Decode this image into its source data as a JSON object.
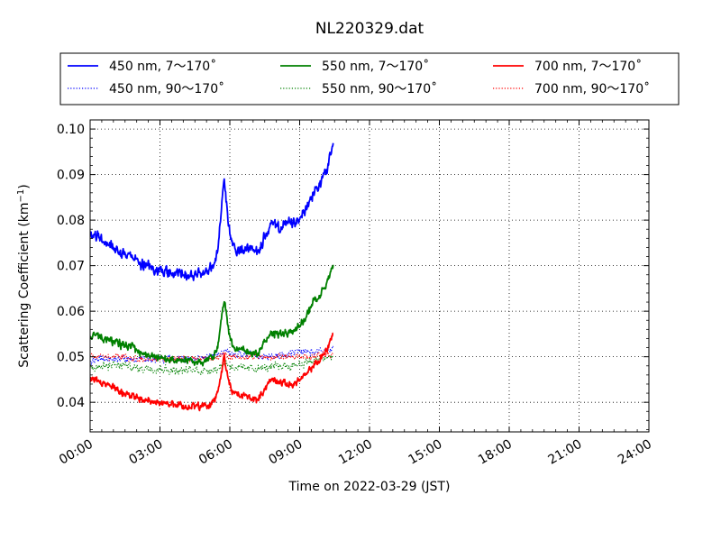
{
  "chart_data": {
    "type": "line",
    "title": "NL220329.dat",
    "xlabel": "Time on 2022-03-29 (JST)",
    "ylabel_main": "Scattering Coefficient (km",
    "ylabel_sup": "−1",
    "ylabel_end": ")",
    "xlim": [
      0,
      24
    ],
    "ylim": [
      0.0335,
      0.102
    ],
    "x_ticks": [
      0,
      3,
      6,
      9,
      12,
      15,
      18,
      21,
      24
    ],
    "x_tick_labels": [
      "00:00",
      "03:00",
      "06:00",
      "09:00",
      "12:00",
      "15:00",
      "18:00",
      "21:00",
      "24:00"
    ],
    "y_ticks": [
      0.04,
      0.05,
      0.06,
      0.07,
      0.08,
      0.09,
      0.1
    ],
    "y_tick_labels": [
      "0.04",
      "0.05",
      "0.06",
      "0.07",
      "0.08",
      "0.09",
      "0.10"
    ],
    "grid": true,
    "legend_position": "top",
    "x_unit": "hours since 00:00 JST",
    "series": [
      {
        "name": "450 nm, 7～170˚",
        "color": "#0000ff",
        "style": "solid",
        "noise": 0.0012,
        "x": [
          0,
          0.3,
          0.6,
          0.9,
          1.2,
          1.5,
          1.8,
          2.1,
          2.4,
          2.7,
          3.0,
          3.3,
          3.6,
          3.9,
          4.2,
          4.5,
          4.8,
          5.1,
          5.3,
          5.5,
          5.65,
          5.75,
          5.85,
          5.95,
          6.1,
          6.3,
          6.6,
          6.9,
          7.2,
          7.5,
          7.8,
          8.1,
          8.4,
          8.7,
          9.0,
          9.3,
          9.6,
          9.9,
          10.2,
          10.45
        ],
        "y": [
          0.0765,
          0.0765,
          0.0755,
          0.0745,
          0.0735,
          0.0725,
          0.072,
          0.0705,
          0.07,
          0.0695,
          0.069,
          0.0685,
          0.068,
          0.0685,
          0.0675,
          0.068,
          0.0685,
          0.069,
          0.07,
          0.074,
          0.083,
          0.0885,
          0.084,
          0.078,
          0.075,
          0.073,
          0.0735,
          0.074,
          0.073,
          0.0765,
          0.079,
          0.078,
          0.0795,
          0.079,
          0.0805,
          0.083,
          0.086,
          0.088,
          0.092,
          0.098
        ]
      },
      {
        "name": "450 nm, 90～170˚",
        "color": "#0000ff",
        "style": "dotted",
        "noise": 0.0008,
        "x": [
          0,
          0.5,
          1.0,
          1.5,
          2.0,
          2.5,
          3.0,
          3.5,
          4.0,
          4.5,
          5.0,
          5.5,
          5.8,
          6.0,
          6.5,
          7.0,
          7.5,
          8.0,
          8.5,
          9.0,
          9.5,
          10.0,
          10.45
        ],
        "y": [
          0.049,
          0.0495,
          0.0495,
          0.0495,
          0.0495,
          0.0495,
          0.0495,
          0.0495,
          0.0495,
          0.0495,
          0.05,
          0.0505,
          0.0515,
          0.0505,
          0.0505,
          0.0505,
          0.05,
          0.0505,
          0.0505,
          0.051,
          0.051,
          0.0515,
          0.052
        ]
      },
      {
        "name": "550 nm, 7～170˚",
        "color": "#008000",
        "style": "solid",
        "noise": 0.0009,
        "x": [
          0,
          0.3,
          0.6,
          0.9,
          1.2,
          1.5,
          1.8,
          2.1,
          2.4,
          2.7,
          3.0,
          3.3,
          3.6,
          3.9,
          4.2,
          4.5,
          4.8,
          5.1,
          5.3,
          5.5,
          5.65,
          5.75,
          5.85,
          5.95,
          6.1,
          6.3,
          6.6,
          6.9,
          7.2,
          7.5,
          7.8,
          8.1,
          8.4,
          8.7,
          9.0,
          9.3,
          9.6,
          9.9,
          10.2,
          10.45
        ],
        "y": [
          0.0545,
          0.0545,
          0.054,
          0.0535,
          0.053,
          0.0525,
          0.052,
          0.051,
          0.0505,
          0.05,
          0.05,
          0.0495,
          0.049,
          0.0495,
          0.049,
          0.049,
          0.049,
          0.0495,
          0.05,
          0.0525,
          0.059,
          0.063,
          0.06,
          0.0555,
          0.053,
          0.0515,
          0.0515,
          0.051,
          0.0505,
          0.053,
          0.0555,
          0.055,
          0.0555,
          0.0555,
          0.057,
          0.059,
          0.062,
          0.064,
          0.0665,
          0.07
        ]
      },
      {
        "name": "550 nm, 90～170˚",
        "color": "#008000",
        "style": "dotted",
        "noise": 0.0009,
        "x": [
          0,
          0.5,
          1.0,
          1.5,
          2.0,
          2.5,
          3.0,
          3.5,
          4.0,
          4.5,
          5.0,
          5.5,
          5.8,
          6.0,
          6.5,
          7.0,
          7.5,
          8.0,
          8.5,
          9.0,
          9.5,
          10.0,
          10.45
        ],
        "y": [
          0.0475,
          0.048,
          0.048,
          0.048,
          0.0475,
          0.0475,
          0.0475,
          0.047,
          0.047,
          0.047,
          0.047,
          0.0475,
          0.049,
          0.048,
          0.0475,
          0.0475,
          0.0475,
          0.048,
          0.048,
          0.0485,
          0.049,
          0.0495,
          0.05
        ]
      },
      {
        "name": "700 nm, 7～170˚",
        "color": "#ff0000",
        "style": "solid",
        "noise": 0.0008,
        "x": [
          0,
          0.3,
          0.6,
          0.9,
          1.2,
          1.5,
          1.8,
          2.1,
          2.4,
          2.7,
          3.0,
          3.3,
          3.6,
          3.9,
          4.2,
          4.5,
          4.8,
          5.1,
          5.3,
          5.5,
          5.65,
          5.75,
          5.85,
          5.95,
          6.1,
          6.3,
          6.6,
          6.9,
          7.2,
          7.5,
          7.8,
          8.1,
          8.4,
          8.7,
          9.0,
          9.3,
          9.6,
          9.9,
          10.2,
          10.45
        ],
        "y": [
          0.045,
          0.045,
          0.044,
          0.0435,
          0.0425,
          0.042,
          0.0415,
          0.041,
          0.0405,
          0.04,
          0.04,
          0.0395,
          0.0395,
          0.0395,
          0.039,
          0.039,
          0.039,
          0.0395,
          0.04,
          0.042,
          0.0465,
          0.05,
          0.0475,
          0.0445,
          0.0425,
          0.0415,
          0.0415,
          0.041,
          0.0405,
          0.043,
          0.045,
          0.0445,
          0.044,
          0.044,
          0.045,
          0.046,
          0.048,
          0.0495,
          0.052,
          0.0555
        ]
      },
      {
        "name": "700 nm, 90～170˚",
        "color": "#ff0000",
        "style": "dotted",
        "noise": 0.0007,
        "x": [
          0,
          0.5,
          1.0,
          1.5,
          2.0,
          2.5,
          3.0,
          3.5,
          4.0,
          4.5,
          5.0,
          5.5,
          5.8,
          6.0,
          6.5,
          7.0,
          7.5,
          8.0,
          8.5,
          9.0,
          9.5,
          10.0,
          10.45
        ],
        "y": [
          0.05,
          0.05,
          0.05,
          0.05,
          0.0495,
          0.0495,
          0.0495,
          0.0495,
          0.0495,
          0.0495,
          0.0495,
          0.05,
          0.0505,
          0.05,
          0.05,
          0.05,
          0.05,
          0.05,
          0.05,
          0.05,
          0.05,
          0.0505,
          0.0505
        ]
      }
    ]
  }
}
